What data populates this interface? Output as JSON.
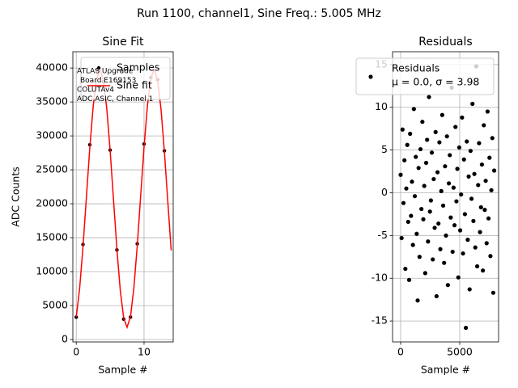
{
  "suptitle": "Run 1100, channel1, Sine Freq.: 5.005 MHz",
  "chart_data": [
    {
      "type": "scatter",
      "title": "Sine Fit",
      "xlabel": "Sample #",
      "ylabel": "ADC Counts",
      "xlim": [
        -0.5,
        14.3
      ],
      "ylim": [
        -360,
        42400
      ],
      "xticks": [
        0,
        10
      ],
      "yticks": [
        0,
        5000,
        10000,
        15000,
        20000,
        25000,
        30000,
        35000,
        40000
      ],
      "grid": true,
      "legend": "upper right",
      "annotation": [
        "ATLAS Upgrade",
        "Board E169153",
        "COLUTAv4",
        "ADC ASIC, Channel 1"
      ],
      "series": [
        {
          "name": "Samples",
          "style": "markers",
          "color": "#000000",
          "x": [
            0,
            1,
            2,
            3,
            4,
            5,
            6,
            7,
            8,
            9,
            10,
            11,
            12,
            13
          ],
          "values": [
            3300,
            14000,
            28700,
            39700,
            38000,
            27900,
            13200,
            3000,
            3300,
            14100,
            28800,
            38600,
            38300,
            27800
          ]
        },
        {
          "name": "Sine fit",
          "style": "line",
          "color": "#ff0000",
          "x": [
            0,
            0.5,
            1,
            1.5,
            2,
            2.5,
            3,
            3.5,
            4,
            4.5,
            5,
            5.5,
            6,
            6.5,
            7,
            7.5,
            8,
            8.5,
            9,
            9.5,
            10,
            10.5,
            11,
            11.5,
            12,
            12.5,
            13,
            13.5,
            14
          ],
          "values": [
            3305,
            7480,
            13680,
            20980,
            28250,
            34370,
            38430,
            39800,
            38260,
            34060,
            27850,
            20550,
            13290,
            7190,
            3130,
            1800,
            3360,
            7600,
            13830,
            21140,
            28380,
            34460,
            38490,
            39800,
            38200,
            33950,
            27700,
            20380,
            13140
          ]
        }
      ]
    },
    {
      "type": "scatter",
      "title": "Residuals",
      "xlabel": "Sample #",
      "xlim": [
        -685,
        8290
      ],
      "ylim": [
        -17.45,
        16.5
      ],
      "xticks": [
        0,
        5000
      ],
      "yticks": [
        -15,
        -10,
        -5,
        0,
        5,
        10,
        15
      ],
      "grid": true,
      "legend": "upper right",
      "legend_note": "μ = 0.0, σ = 3.98",
      "series": [
        {
          "name": "Residuals",
          "style": "markers",
          "color": "#000000",
          "x": [
            0,
            80,
            160,
            240,
            320,
            400,
            480,
            560,
            640,
            720,
            800,
            880,
            960,
            1040,
            1120,
            1200,
            1280,
            1360,
            1440,
            1520,
            1600,
            1680,
            1760,
            1840,
            1920,
            2000,
            2080,
            2160,
            2240,
            2320,
            2400,
            2480,
            2560,
            2640,
            2720,
            2800,
            2880,
            2960,
            3040,
            3120,
            3200,
            3280,
            3360,
            3440,
            3520,
            3600,
            3680,
            3760,
            3840,
            3920,
            4000,
            4080,
            4160,
            4240,
            4320,
            4400,
            4480,
            4560,
            4640,
            4720,
            4800,
            4880,
            4960,
            5040,
            5120,
            5200,
            5280,
            5360,
            5440,
            5520,
            5600,
            5680,
            5760,
            5840,
            5920,
            6000,
            6080,
            6160,
            6240,
            6320,
            6400,
            6480,
            6560,
            6640,
            6720,
            6800,
            6880,
            6960,
            7040,
            7120,
            7200,
            7280,
            7360,
            7440,
            7520,
            7600,
            7680,
            7760,
            7840,
            7920
          ],
          "values": [
            2.1,
            -5.3,
            7.4,
            -1.2,
            3.8,
            -8.9,
            0.5,
            5.6,
            -3.4,
            -10.2,
            6.9,
            -2.7,
            1.3,
            -6.1,
            9.8,
            -0.4,
            4.2,
            -4.8,
            -12.6,
            2.9,
            -7.5,
            5.1,
            -1.9,
            8.3,
            -3.1,
            0.8,
            -9.4,
            3.5,
            6.2,
            -5.7,
            11.2,
            -2.2,
            -0.9,
            4.7,
            -7.8,
            1.6,
            -4.1,
            7.1,
            -12.1,
            2.4,
            -3.6,
            5.9,
            -6.6,
            0.2,
            9.1,
            -1.5,
            -8.2,
            3.1,
            -5.0,
            6.6,
            -10.8,
            1.1,
            4.4,
            -2.9,
            12.3,
            -6.9,
            0.6,
            -3.8,
            7.7,
            -1.0,
            2.8,
            -9.9,
            5.3,
            -4.4,
            -0.2,
            8.8,
            -7.1,
            3.9,
            -2.5,
            -15.8,
            6.0,
            -5.5,
            1.9,
            -11.3,
            4.9,
            -0.7,
            10.4,
            -3.3,
            2.2,
            -6.4,
            14.8,
            -8.6,
            0.9,
            5.8,
            -4.6,
            -1.7,
            3.3,
            -9.1,
            7.9,
            -2.0,
            1.4,
            -5.9,
            9.5,
            -3.0,
            4.1,
            -7.4,
            0.3,
            6.4,
            -11.7,
            2.6
          ]
        }
      ]
    }
  ]
}
